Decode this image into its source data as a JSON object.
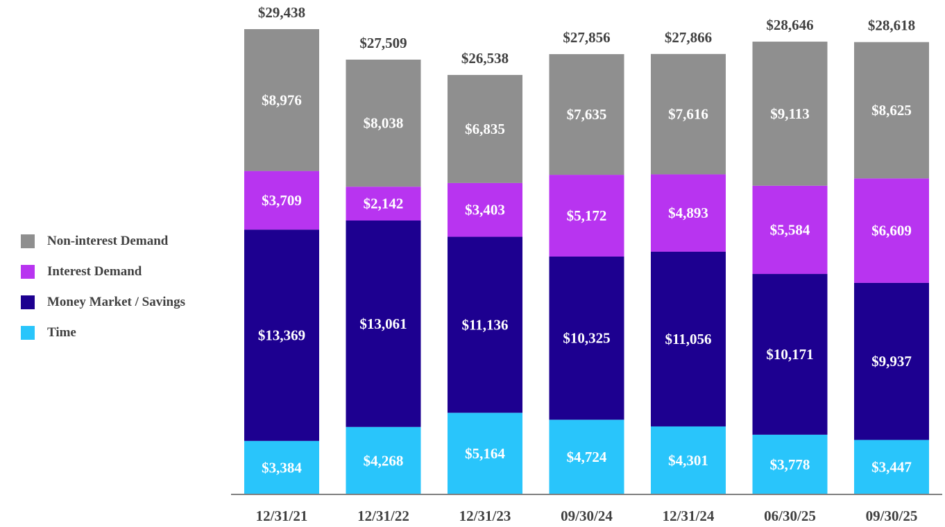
{
  "chart_data": {
    "type": "bar",
    "stacked": true,
    "title": "",
    "xlabel": "",
    "ylabel": "",
    "categories": [
      "12/31/21",
      "12/31/22",
      "12/31/23",
      "09/30/24",
      "12/31/24",
      "06/30/25",
      "09/30/25"
    ],
    "totals": [
      "$29,438",
      "$27,509",
      "$26,538",
      "$27,856",
      "$27,866",
      "$28,646",
      "$28,618"
    ],
    "series": [
      {
        "name": "Time",
        "color": "#29c5fb",
        "values": [
          3384,
          4268,
          5164,
          4724,
          4301,
          3778,
          3447
        ],
        "labels": [
          "$3,384",
          "$4,268",
          "$5,164",
          "$4,724",
          "$4,301",
          "$3,778",
          "$3,447"
        ]
      },
      {
        "name": "Money Market / Savings",
        "color": "#1d0090",
        "values": [
          13369,
          13061,
          11136,
          10325,
          11056,
          10171,
          9937
        ],
        "labels": [
          "$13,369",
          "$13,061",
          "$11,136",
          "$10,325",
          "$11,056",
          "$10,171",
          "$9,937"
        ]
      },
      {
        "name": "Interest Demand",
        "color": "#b834f0",
        "values": [
          3709,
          2142,
          3403,
          5172,
          4893,
          5584,
          6609
        ],
        "labels": [
          "$3,709",
          "$2,142",
          "$3,403",
          "$5,172",
          "$4,893",
          "$5,584",
          "$6,609"
        ]
      },
      {
        "name": "Non-interest Demand",
        "color": "#8f8f8f",
        "values": [
          8976,
          8038,
          6835,
          7635,
          7616,
          9113,
          8625
        ],
        "labels": [
          "$8,976",
          "$8,038",
          "$6,835",
          "$7,635",
          "$7,616",
          "$9,113",
          "$8,625"
        ]
      }
    ],
    "legend_position": "left",
    "legend_order": [
      "Non-interest Demand",
      "Interest Demand",
      "Money Market / Savings",
      "Time"
    ],
    "grid": false
  }
}
